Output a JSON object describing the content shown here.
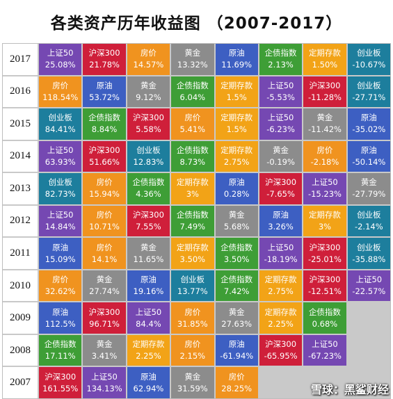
{
  "title": "各类资产历年收益图 （2007-2017）",
  "watermark": "雪球：黑鲨财经",
  "colors": {
    "上证50": "#7548b2",
    "沪深300": "#cf1f3a",
    "房价": "#f0931f",
    "黄金": "#8c8c8c",
    "原油": "#3d5fc2",
    "企债指数": "#3e9e36",
    "定期存款": "#f2a317",
    "创业板": "#1d7e9d",
    "empty": "#c9c9c9"
  },
  "chart_data": {
    "type": "table",
    "title": "各类资产历年收益图 （2007-2017）",
    "columns": 8,
    "rows": [
      {
        "year": "2017",
        "cells": [
          {
            "asset": "上证50",
            "value": "25.08%"
          },
          {
            "asset": "沪深300",
            "value": "21.78%"
          },
          {
            "asset": "房价",
            "value": "14.57%"
          },
          {
            "asset": "黄金",
            "value": "13.32%"
          },
          {
            "asset": "原油",
            "value": "11.69%"
          },
          {
            "asset": "企债指数",
            "value": "2.13%"
          },
          {
            "asset": "定期存款",
            "value": "1.50%"
          },
          {
            "asset": "创业板",
            "value": "-10.67%"
          }
        ]
      },
      {
        "year": "2016",
        "cells": [
          {
            "asset": "房价",
            "value": "118.54%"
          },
          {
            "asset": "原油",
            "value": "53.72%"
          },
          {
            "asset": "黄金",
            "value": "9.12%"
          },
          {
            "asset": "企债指数",
            "value": "6.04%"
          },
          {
            "asset": "定期存款",
            "value": "1.5%"
          },
          {
            "asset": "上证50",
            "value": "-5.53%"
          },
          {
            "asset": "沪深300",
            "value": "-11.28%"
          },
          {
            "asset": "创业板",
            "value": "-27.71%"
          }
        ]
      },
      {
        "year": "2015",
        "cells": [
          {
            "asset": "创业板",
            "value": "84.41%"
          },
          {
            "asset": "企债指数",
            "value": "8.84%"
          },
          {
            "asset": "沪深300",
            "value": "5.58%"
          },
          {
            "asset": "房价",
            "value": "5.41%"
          },
          {
            "asset": "定期存款",
            "value": "1.5%"
          },
          {
            "asset": "上证50",
            "value": "-6.23%"
          },
          {
            "asset": "黄金",
            "value": "-11.42%"
          },
          {
            "asset": "原油",
            "value": "-35.02%"
          }
        ]
      },
      {
        "year": "2014",
        "cells": [
          {
            "asset": "上证50",
            "value": "63.93%"
          },
          {
            "asset": "沪深300",
            "value": "51.66%"
          },
          {
            "asset": "创业板",
            "value": "12.83%"
          },
          {
            "asset": "企债指数",
            "value": "8.73%"
          },
          {
            "asset": "定期存款",
            "value": "2.75%"
          },
          {
            "asset": "黄金",
            "value": "-0.19%"
          },
          {
            "asset": "房价",
            "value": "-2.18%"
          },
          {
            "asset": "原油",
            "value": "-50.14%"
          }
        ]
      },
      {
        "year": "2013",
        "cells": [
          {
            "asset": "创业板",
            "value": "82.73%"
          },
          {
            "asset": "房价",
            "value": "15.94%"
          },
          {
            "asset": "企债指数",
            "value": "4.36%"
          },
          {
            "asset": "定期存款",
            "value": "3%"
          },
          {
            "asset": "原油",
            "value": "0.28%"
          },
          {
            "asset": "沪深300",
            "value": "-7.65%"
          },
          {
            "asset": "上证50",
            "value": "-15.23%"
          },
          {
            "asset": "黄金",
            "value": "-27.79%"
          }
        ]
      },
      {
        "year": "2012",
        "cells": [
          {
            "asset": "上证50",
            "value": "14.84%"
          },
          {
            "asset": "房价",
            "value": "10.71%"
          },
          {
            "asset": "沪深300",
            "value": "7.55%"
          },
          {
            "asset": "企债指数",
            "value": "7.49%"
          },
          {
            "asset": "黄金",
            "value": "5.68%"
          },
          {
            "asset": "原油",
            "value": "3.26%"
          },
          {
            "asset": "定期存款",
            "value": "3%"
          },
          {
            "asset": "创业板",
            "value": "-2.14%"
          }
        ]
      },
      {
        "year": "2011",
        "cells": [
          {
            "asset": "原油",
            "value": "15.09%"
          },
          {
            "asset": "房价",
            "value": "14.1%"
          },
          {
            "asset": "黄金",
            "value": "11.65%"
          },
          {
            "asset": "定期存款",
            "value": "3.50%"
          },
          {
            "asset": "企债指数",
            "value": "3.50%"
          },
          {
            "asset": "上证50",
            "value": "-18.19%"
          },
          {
            "asset": "沪深300",
            "value": "-25.01%"
          },
          {
            "asset": "创业板",
            "value": "-35.88%"
          }
        ]
      },
      {
        "year": "2010",
        "cells": [
          {
            "asset": "房价",
            "value": "32.62%"
          },
          {
            "asset": "黄金",
            "value": "27.74%"
          },
          {
            "asset": "原油",
            "value": "19.16%"
          },
          {
            "asset": "创业板",
            "value": "13.77%"
          },
          {
            "asset": "企债指数",
            "value": "7.42%"
          },
          {
            "asset": "定期存款",
            "value": "2.75%"
          },
          {
            "asset": "沪深300",
            "value": "-12.51%"
          },
          {
            "asset": "上证50",
            "value": "-22.57%"
          }
        ]
      },
      {
        "year": "2009",
        "cells": [
          {
            "asset": "原油",
            "value": "112.5%"
          },
          {
            "asset": "沪深300",
            "value": "96.71%"
          },
          {
            "asset": "上证50",
            "value": "84.4%"
          },
          {
            "asset": "房价",
            "value": "31.85%"
          },
          {
            "asset": "黄金",
            "value": "27.63%"
          },
          {
            "asset": "定期存款",
            "value": "2.25%"
          },
          {
            "asset": "企债指数",
            "value": "0.68%"
          },
          {
            "asset": "",
            "value": ""
          }
        ]
      },
      {
        "year": "2008",
        "cells": [
          {
            "asset": "企债指数",
            "value": "17.11%"
          },
          {
            "asset": "黄金",
            "value": "3.41%"
          },
          {
            "asset": "定期存款",
            "value": "2.25%"
          },
          {
            "asset": "房价",
            "value": "2.15%"
          },
          {
            "asset": "原油",
            "value": "-61.94%"
          },
          {
            "asset": "沪深300",
            "value": "-65.95%"
          },
          {
            "asset": "上证50",
            "value": "-67.23%"
          },
          {
            "asset": "",
            "value": ""
          }
        ]
      },
      {
        "year": "2007",
        "cells": [
          {
            "asset": "沪深300",
            "value": "161.55%"
          },
          {
            "asset": "上证50",
            "value": "134.13%"
          },
          {
            "asset": "原油",
            "value": "62.94%"
          },
          {
            "asset": "黄金",
            "value": "31.59%"
          },
          {
            "asset": "房价",
            "value": "28.25%"
          },
          {
            "asset": "",
            "value": ""
          },
          {
            "asset": "",
            "value": ""
          },
          {
            "asset": "",
            "value": ""
          }
        ]
      }
    ]
  }
}
